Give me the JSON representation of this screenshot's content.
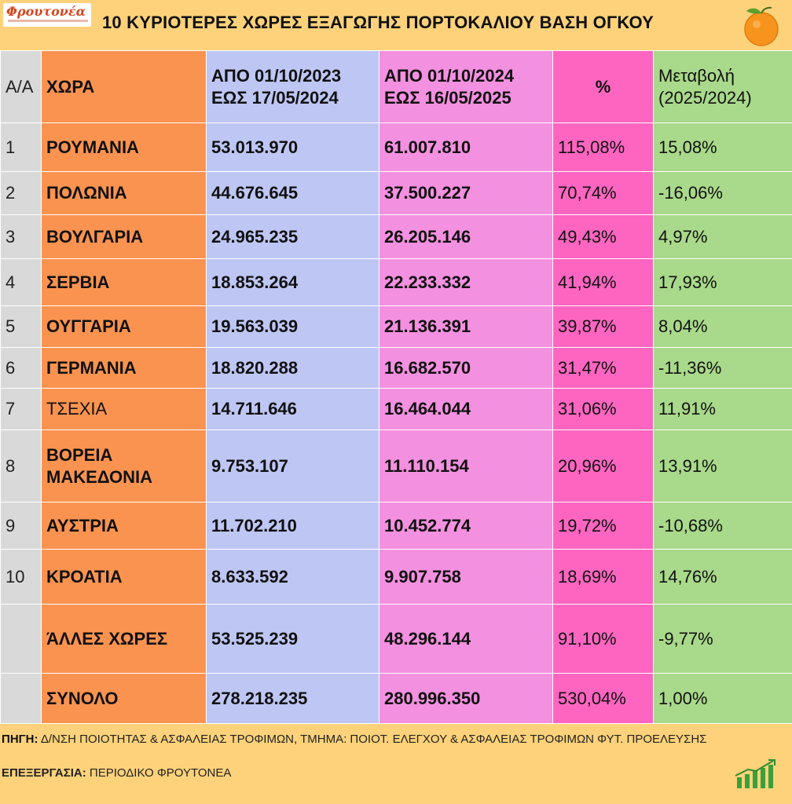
{
  "header": {
    "logo_text": "Φρουτονέα",
    "title": "10 ΚΥΡΙΟΤΕΡΕΣ ΧΩΡΕΣ ΕΞΑΓΩΓΗΣ ΠΟΡΤΟΚΑΛΙΟΥ ΒΑΣΗ ΟΓΚΟΥ",
    "title_icon": "orange-fruit-icon"
  },
  "table": {
    "headers": {
      "aa": "Α/Α",
      "country": "ΧΩΡΑ",
      "period1_line1": "ΑΠΟ 01/10/2023",
      "period1_line2": "ΕΩΣ 17/05/2024",
      "period2_line1": "ΑΠΟ 01/10/2024",
      "period2_line2": "ΕΩΣ  16/05/2025",
      "pct": "%",
      "change_line1": "Μεταβολή",
      "change_line2": "(2025/2024)"
    },
    "rows": [
      {
        "aa": "1",
        "country": "ΡΟΥΜΑΝΙΑ",
        "v2024": "53.013.970",
        "v2025": "61.007.810",
        "pct": "115,08%",
        "change": "15,08%"
      },
      {
        "aa": "2",
        "country": "ΠΟΛΩΝΙΑ",
        "v2024": "44.676.645",
        "v2025": "37.500.227",
        "pct": "70,74%",
        "change": "-16,06%"
      },
      {
        "aa": "3",
        "country": "ΒΟΥΛΓΑΡΙΑ",
        "v2024": "24.965.235",
        "v2025": "26.205.146",
        "pct": "49,43%",
        "change": "4,97%"
      },
      {
        "aa": "4",
        "country": "ΣΕΡΒΙΑ",
        "v2024": "18.853.264",
        "v2025": "22.233.332",
        "pct": "41,94%",
        "change": "17,93%"
      },
      {
        "aa": "5",
        "country": "ΟΥΓΓΑΡΙΑ",
        "v2024": "19.563.039",
        "v2025": "21.136.391",
        "pct": "39,87%",
        "change": "8,04%"
      },
      {
        "aa": "6",
        "country": "ΓΕΡΜΑΝΙΑ",
        "v2024": "18.820.288",
        "v2025": "16.682.570",
        "pct": "31,47%",
        "change": "-11,36%"
      },
      {
        "aa": "7",
        "country": "ΤΣΕΧΙΑ",
        "v2024": "14.711.646",
        "v2025": "16.464.044",
        "pct": "31,06%",
        "change": "11,91%"
      },
      {
        "aa": "8",
        "country": "ΒΟΡΕΙΑ ΜΑΚΕΔΟΝΙΑ",
        "v2024": "9.753.107",
        "v2025": "11.110.154",
        "pct": "20,96%",
        "change": "13,91%"
      },
      {
        "aa": "9",
        "country": "ΑΥΣΤΡΙΑ",
        "v2024": "11.702.210",
        "v2025": "10.452.774",
        "pct": "19,72%",
        "change": "-10,68%"
      },
      {
        "aa": "10",
        "country": "ΚΡΟΑΤΙΑ",
        "v2024": "8.633.592",
        "v2025": "9.907.758",
        "pct": "18,69%",
        "change": "14,76%"
      },
      {
        "aa": "",
        "country": "ΆΛΛΕΣ ΧΩΡΕΣ",
        "v2024": "53.525.239",
        "v2025": "48.296.144",
        "pct": "91,10%",
        "change": "-9,77%"
      },
      {
        "aa": "",
        "country": "ΣΥΝΟΛΟ",
        "v2024": "278.218.235",
        "v2025": "280.996.350",
        "pct": "530,04%",
        "change": "1,00%"
      }
    ]
  },
  "footer": {
    "source_label": "ΠΗΓΗ:",
    "source_text": "Δ/ΝΣΗ ΠΟΙΟΤΗΤΑΣ & ΑΣΦΑΛΕΙΑΣ ΤΡΟΦΙΜΩΝ, ΤΜΗΜΑ: ΠΟΙΟΤ. ΕΛΕΓΧΟΥ & ΑΣΦΑΛΕΙΑΣ ΤΡΟΦΙΜΩΝ ΦΥΤ. ΠΡΟΕΛΕΥΣΗΣ",
    "processing_label": "ΕΠΕΞΕΡΓΑΣΙΑ:",
    "processing_text": "ΠΕΡΙΟΔΙΚΟ ΦΡΟΥΤΟΝΕΑ",
    "footer_icon": "bar-chart-growth-icon"
  },
  "colors": {
    "background": "#fdd27a",
    "aa_column": "#d9d9d9",
    "country_column": "#fb9350",
    "period1_column": "#bec6f4",
    "period2_column": "#f490e0",
    "pct_column": "#fd65c1",
    "change_column": "#a9d98a"
  }
}
